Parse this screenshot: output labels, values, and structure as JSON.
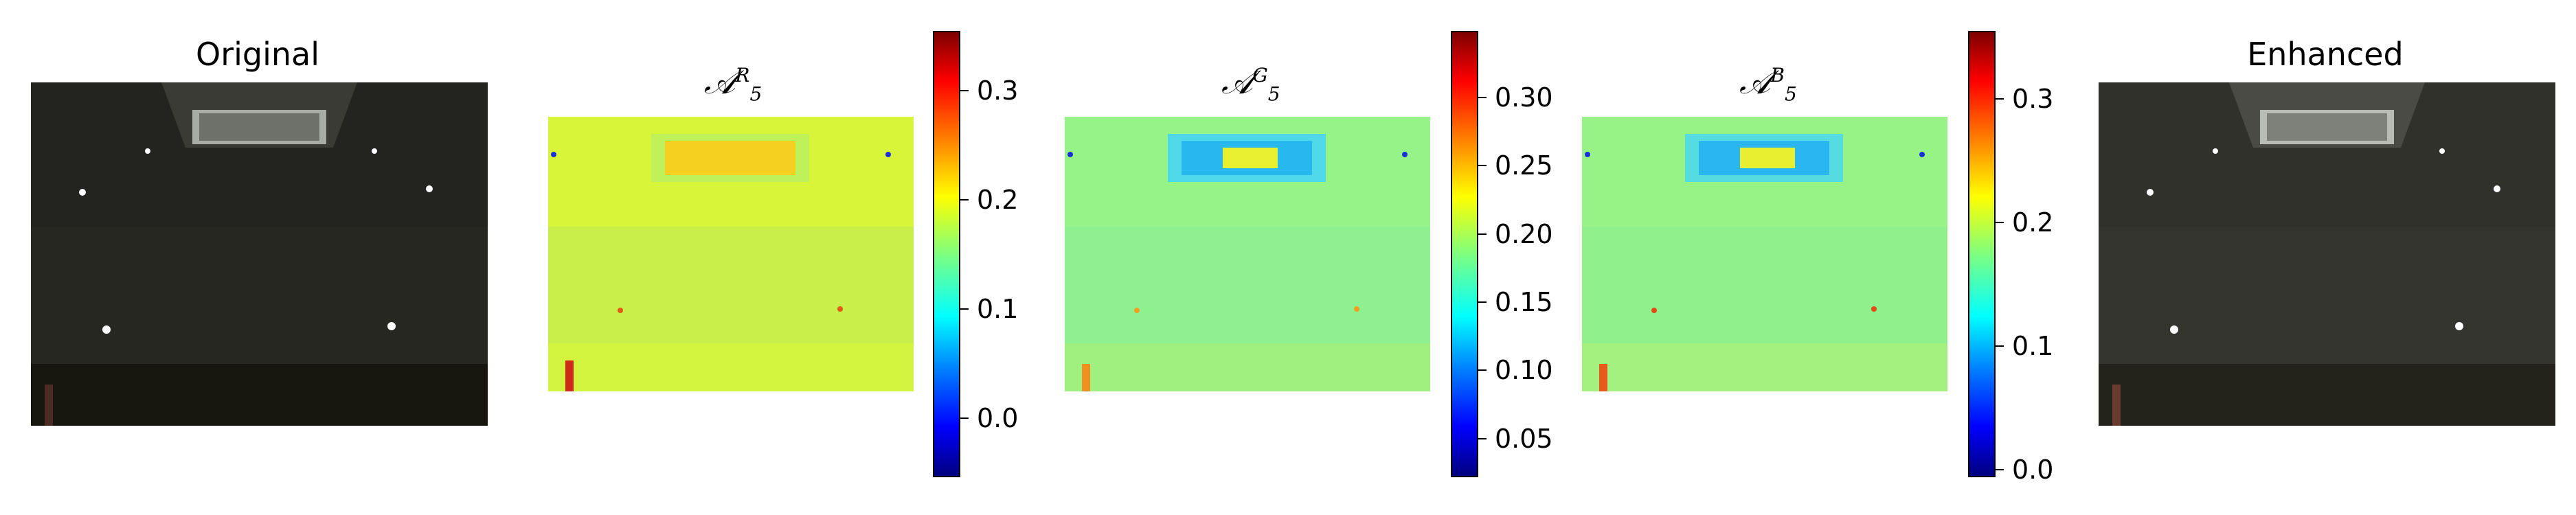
{
  "panels": {
    "original": {
      "title": "Original"
    },
    "enhanced": {
      "title": "Enhanced"
    },
    "map_r": {
      "symbol": "𝒜",
      "sup": "R",
      "sub": "5",
      "colorbar_ticks": [
        "0.3",
        "0.2",
        "0.1",
        "0.0"
      ]
    },
    "map_g": {
      "symbol": "𝒜",
      "sup": "G",
      "sub": "5",
      "colorbar_ticks": [
        "0.30",
        "0.25",
        "0.20",
        "0.15",
        "0.10",
        "0.05"
      ]
    },
    "map_b": {
      "symbol": "𝒜",
      "sup": "B",
      "sub": "5",
      "colorbar_ticks": [
        "0.3",
        "0.2",
        "0.1",
        "0.0"
      ]
    }
  },
  "colors": {
    "photo_dark": "#1e1f1a",
    "photo_enhanced": "#2a2b25",
    "heat_r": "#d6f23a",
    "heat_g": "#8cf08c",
    "heat_b": "#8cf08c"
  }
}
